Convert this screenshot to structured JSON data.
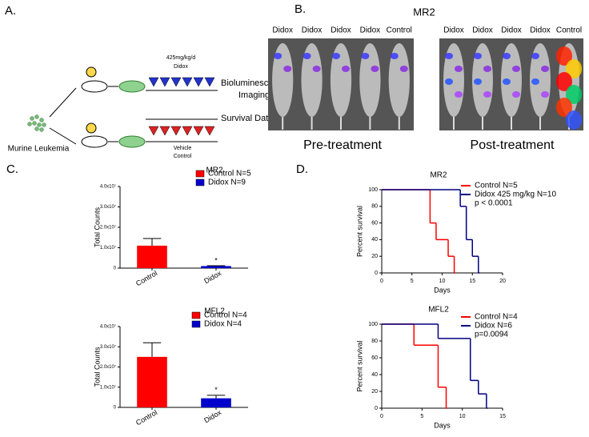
{
  "panels": {
    "a": {
      "label": "A.",
      "dose": "425mg/kg/d",
      "drug": "Didox",
      "source": "Murine Leukemia",
      "imaging": [
        "Bioluminescence",
        "Imaging"
      ],
      "survival": "Survival Data",
      "vehicle": [
        "Vehicle",
        "Control"
      ]
    },
    "b": {
      "label": "B.",
      "title": "MR2",
      "pre_labels": [
        "Didox",
        "Didox",
        "Didox",
        "Didox",
        "Control"
      ],
      "post_labels": [
        "Didox",
        "Didox",
        "Didox",
        "Didox",
        "Control"
      ],
      "pre_caption": "Pre-treatment",
      "post_caption": "Post-treatment"
    },
    "c": {
      "label": "C."
    },
    "d": {
      "label": "D."
    }
  },
  "chart_data": [
    {
      "type": "bar",
      "title": "MR2",
      "ylabel": "Total Counts",
      "categories": [
        "Control",
        "Didox"
      ],
      "values": [
        11000000,
        1000000
      ],
      "errors": [
        3500000,
        200000
      ],
      "colors": [
        "#ff0000",
        "#0000cc"
      ],
      "legend": [
        "Control N=5",
        "Didox N=9"
      ],
      "annotation": "*",
      "ylim": [
        0,
        40000000
      ],
      "yticks": [
        0,
        {
          "value": 10000000,
          "label": "1.0x10⁷"
        },
        {
          "value": 20000000,
          "label": "2.0x10⁷"
        },
        {
          "value": 30000000,
          "label": "3.0x10⁷"
        },
        {
          "value": 40000000,
          "label": "4.0x10⁷"
        }
      ]
    },
    {
      "type": "bar",
      "title": "MFL2",
      "ylabel": "Total Counts",
      "categories": [
        "Control",
        "Didox"
      ],
      "values": [
        25000000,
        4500000
      ],
      "errors": [
        7000000,
        1500000
      ],
      "colors": [
        "#ff0000",
        "#0000cc"
      ],
      "legend": [
        "Control N=4",
        "Didox N=4"
      ],
      "annotation": "*",
      "ylim": [
        0,
        40000000
      ],
      "yticks": [
        0,
        {
          "value": 10000000,
          "label": "1.0x10⁷"
        },
        {
          "value": 20000000,
          "label": "2.0x10⁷"
        },
        {
          "value": 30000000,
          "label": "3.0x10⁷"
        },
        {
          "value": 40000000,
          "label": "4.0x10⁷"
        }
      ]
    },
    {
      "type": "step",
      "title": "MR2",
      "xlabel": "Days",
      "ylabel": "Percent survival",
      "series": [
        {
          "name": "Control N=5",
          "color": "#ff0000",
          "x": [
            0,
            8,
            9,
            11,
            12
          ],
          "values": [
            100,
            60,
            40,
            20,
            0
          ]
        },
        {
          "name": "Didox 425 mg/kg N=10",
          "color": "#000080",
          "x": [
            0,
            13,
            14,
            15,
            16
          ],
          "values": [
            100,
            80,
            40,
            20,
            0
          ]
        }
      ],
      "annotation": "p < 0.0001",
      "xlim": [
        0,
        20
      ],
      "xticks": [
        0,
        5,
        10,
        15,
        20
      ],
      "ylim": [
        0,
        100
      ],
      "yticks": [
        0,
        20,
        40,
        60,
        80,
        100
      ]
    },
    {
      "type": "step",
      "title": "MFL2",
      "xlabel": "Days",
      "ylabel": "Percent survival",
      "series": [
        {
          "name": "Control N=4",
          "color": "#ff0000",
          "x": [
            0,
            4,
            7,
            8
          ],
          "values": [
            100,
            75,
            25,
            0
          ]
        },
        {
          "name": "Didox N=6",
          "color": "#000080",
          "x": [
            0,
            7,
            11,
            12,
            13
          ],
          "values": [
            100,
            83,
            33,
            17,
            0
          ]
        }
      ],
      "annotation": "p=0.0094",
      "xlim": [
        0,
        15
      ],
      "xticks": [
        0,
        5,
        10,
        15
      ],
      "ylim": [
        0,
        100
      ],
      "yticks": [
        0,
        20,
        40,
        60,
        80,
        100
      ]
    }
  ]
}
